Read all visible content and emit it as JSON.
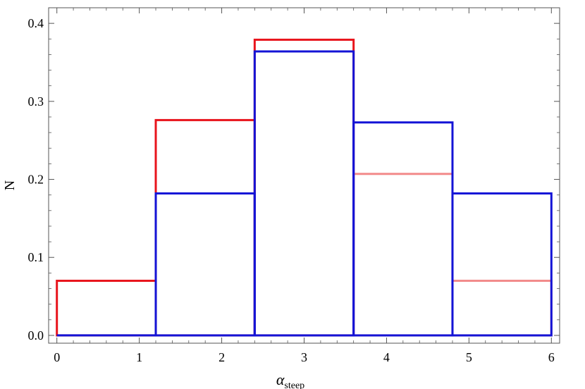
{
  "chart_data": {
    "type": "histogram",
    "xlabel": "α",
    "xlabel_sub": "steep",
    "ylabel": "N",
    "xlim": [
      -0.1,
      6.1
    ],
    "ylim": [
      -0.01,
      0.42
    ],
    "x_ticks": [
      0,
      1,
      2,
      3,
      4,
      5,
      6
    ],
    "y_ticks": [
      0.0,
      0.1,
      0.2,
      0.3,
      0.4
    ],
    "y_tick_labels": [
      "0.0",
      "0.1",
      "0.2",
      "0.3",
      "0.4"
    ],
    "bin_edges": [
      0,
      1.2,
      2.4,
      3.6,
      4.8,
      6.0
    ],
    "series": [
      {
        "values": [
          0.07,
          0.276,
          0.379,
          0.207,
          0.07
        ],
        "color": "#e8141c",
        "color_overlapped": "#f28a8a"
      },
      {
        "values": [
          0.0,
          0.182,
          0.364,
          0.273,
          0.182
        ],
        "color": "#1414d6"
      }
    ],
    "grid": false,
    "frame": true
  }
}
